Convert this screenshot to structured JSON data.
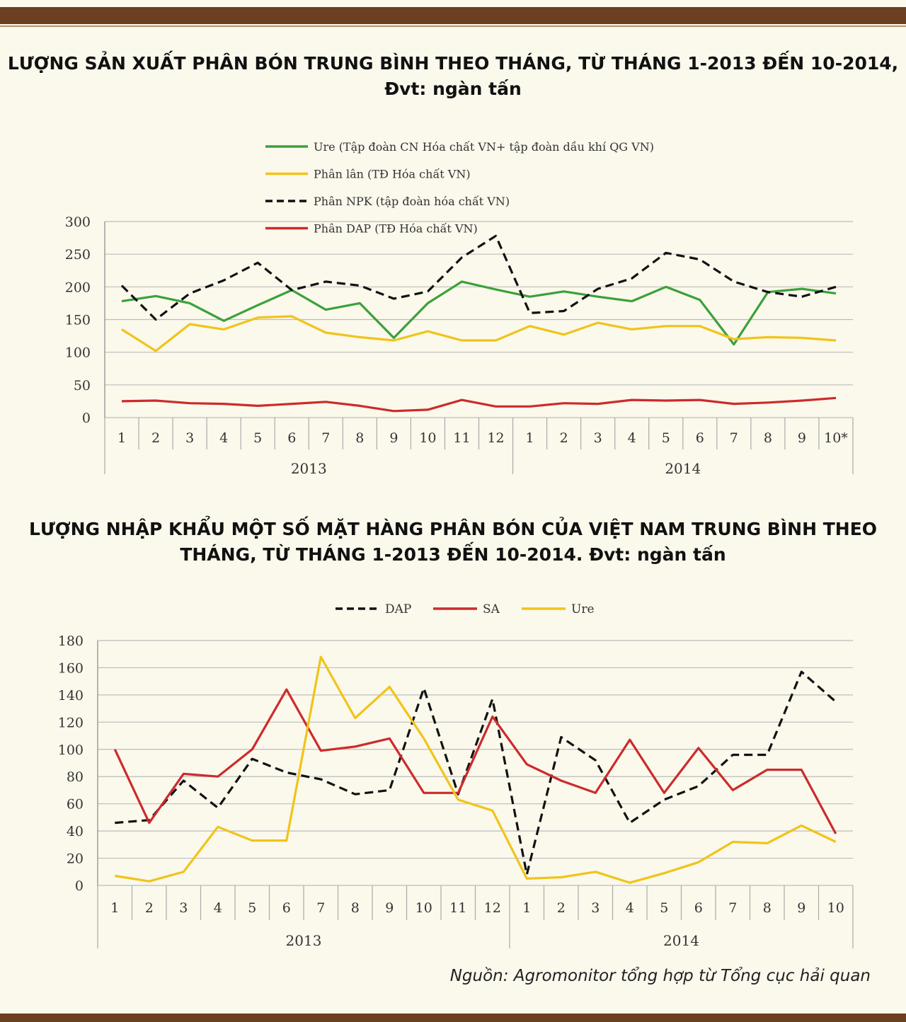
{
  "source_note": "Nguồn: Agromonitor tổng hợp từ Tổng cục hải quan",
  "chart_data": [
    {
      "type": "line",
      "title_line1": "LƯỢNG SẢN XUẤT PHÂN BÓN TRUNG BÌNH THEO THÁNG, TỪ THÁNG 1-2013 ĐẾN 10-2014,",
      "title_line2": "Đvt: ngàn tấn",
      "categories": [
        "1",
        "2",
        "3",
        "4",
        "5",
        "6",
        "7",
        "8",
        "9",
        "10",
        "11",
        "12",
        "1",
        "2",
        "3",
        "4",
        "5",
        "6",
        "7",
        "8",
        "9",
        "10*"
      ],
      "groups": [
        {
          "label": "2013",
          "count": 12
        },
        {
          "label": "2014",
          "count": 10
        }
      ],
      "ylim": [
        0,
        300
      ],
      "yticks": [
        0,
        50,
        100,
        150,
        200,
        250,
        300
      ],
      "legend_position": "top",
      "series": [
        {
          "name": "Ure (Tập đoàn CN Hóa chất VN+ tập đoàn dầu khí QG VN)",
          "color": "#3aa13a",
          "dash": false,
          "values": [
            178,
            186,
            175,
            148,
            172,
            195,
            165,
            175,
            122,
            175,
            208,
            196,
            185,
            193,
            185,
            178,
            200,
            180,
            112,
            192,
            197,
            190
          ]
        },
        {
          "name": "Phân lân (TĐ Hóa chất VN)",
          "color": "#f0c419",
          "dash": false,
          "values": [
            135,
            102,
            143,
            135,
            153,
            155,
            130,
            123,
            118,
            132,
            118,
            118,
            140,
            127,
            145,
            135,
            140,
            140,
            120,
            123,
            122,
            118
          ]
        },
        {
          "name": "Phân NPK (tập đoàn hóa chất VN)",
          "color": "#111111",
          "dash": true,
          "values": [
            202,
            150,
            190,
            210,
            237,
            195,
            208,
            202,
            182,
            193,
            245,
            278,
            160,
            163,
            197,
            213,
            252,
            242,
            208,
            192,
            185,
            200
          ]
        },
        {
          "name": "Phân DAP (TĐ Hóa chất VN)",
          "color": "#cc2b2b",
          "dash": false,
          "values": [
            25,
            26,
            22,
            21,
            18,
            21,
            24,
            18,
            10,
            12,
            27,
            17,
            17,
            22,
            21,
            27,
            26,
            27,
            21,
            23,
            26,
            30
          ]
        }
      ]
    },
    {
      "type": "line",
      "title_line1": "LƯỢNG NHẬP KHẨU MỘT SỐ MẶT HÀNG PHÂN BÓN CỦA VIỆT NAM TRUNG BÌNH THEO",
      "title_line2": "THÁNG, TỪ THÁNG 1-2013 ĐẾN 10-2014. Đvt: ngàn tấn",
      "categories": [
        "1",
        "2",
        "3",
        "4",
        "5",
        "6",
        "7",
        "8",
        "9",
        "10",
        "11",
        "12",
        "1",
        "2",
        "3",
        "4",
        "5",
        "6",
        "7",
        "8",
        "9",
        "10"
      ],
      "groups": [
        {
          "label": "2013",
          "count": 12
        },
        {
          "label": "2014",
          "count": 10
        }
      ],
      "ylim": [
        0,
        180
      ],
      "yticks": [
        0,
        20,
        40,
        60,
        80,
        100,
        120,
        140,
        160,
        180
      ],
      "legend_position": "top",
      "series": [
        {
          "name": "DAP",
          "color": "#111111",
          "dash": true,
          "values": [
            46,
            48,
            77,
            57,
            93,
            83,
            78,
            67,
            70,
            145,
            67,
            137,
            8,
            109,
            92,
            46,
            63,
            73,
            96,
            96,
            157,
            135
          ]
        },
        {
          "name": "SA",
          "color": "#cc2b2b",
          "dash": false,
          "values": [
            100,
            46,
            82,
            80,
            100,
            144,
            99,
            102,
            108,
            68,
            68,
            124,
            89,
            77,
            68,
            107,
            68,
            101,
            70,
            85,
            85,
            38
          ]
        },
        {
          "name": "Ure",
          "color": "#f0c419",
          "dash": false,
          "values": [
            7,
            3,
            10,
            43,
            33,
            33,
            168,
            123,
            146,
            108,
            63,
            55,
            5,
            6,
            10,
            2,
            9,
            17,
            32,
            31,
            44,
            32
          ]
        }
      ]
    }
  ]
}
